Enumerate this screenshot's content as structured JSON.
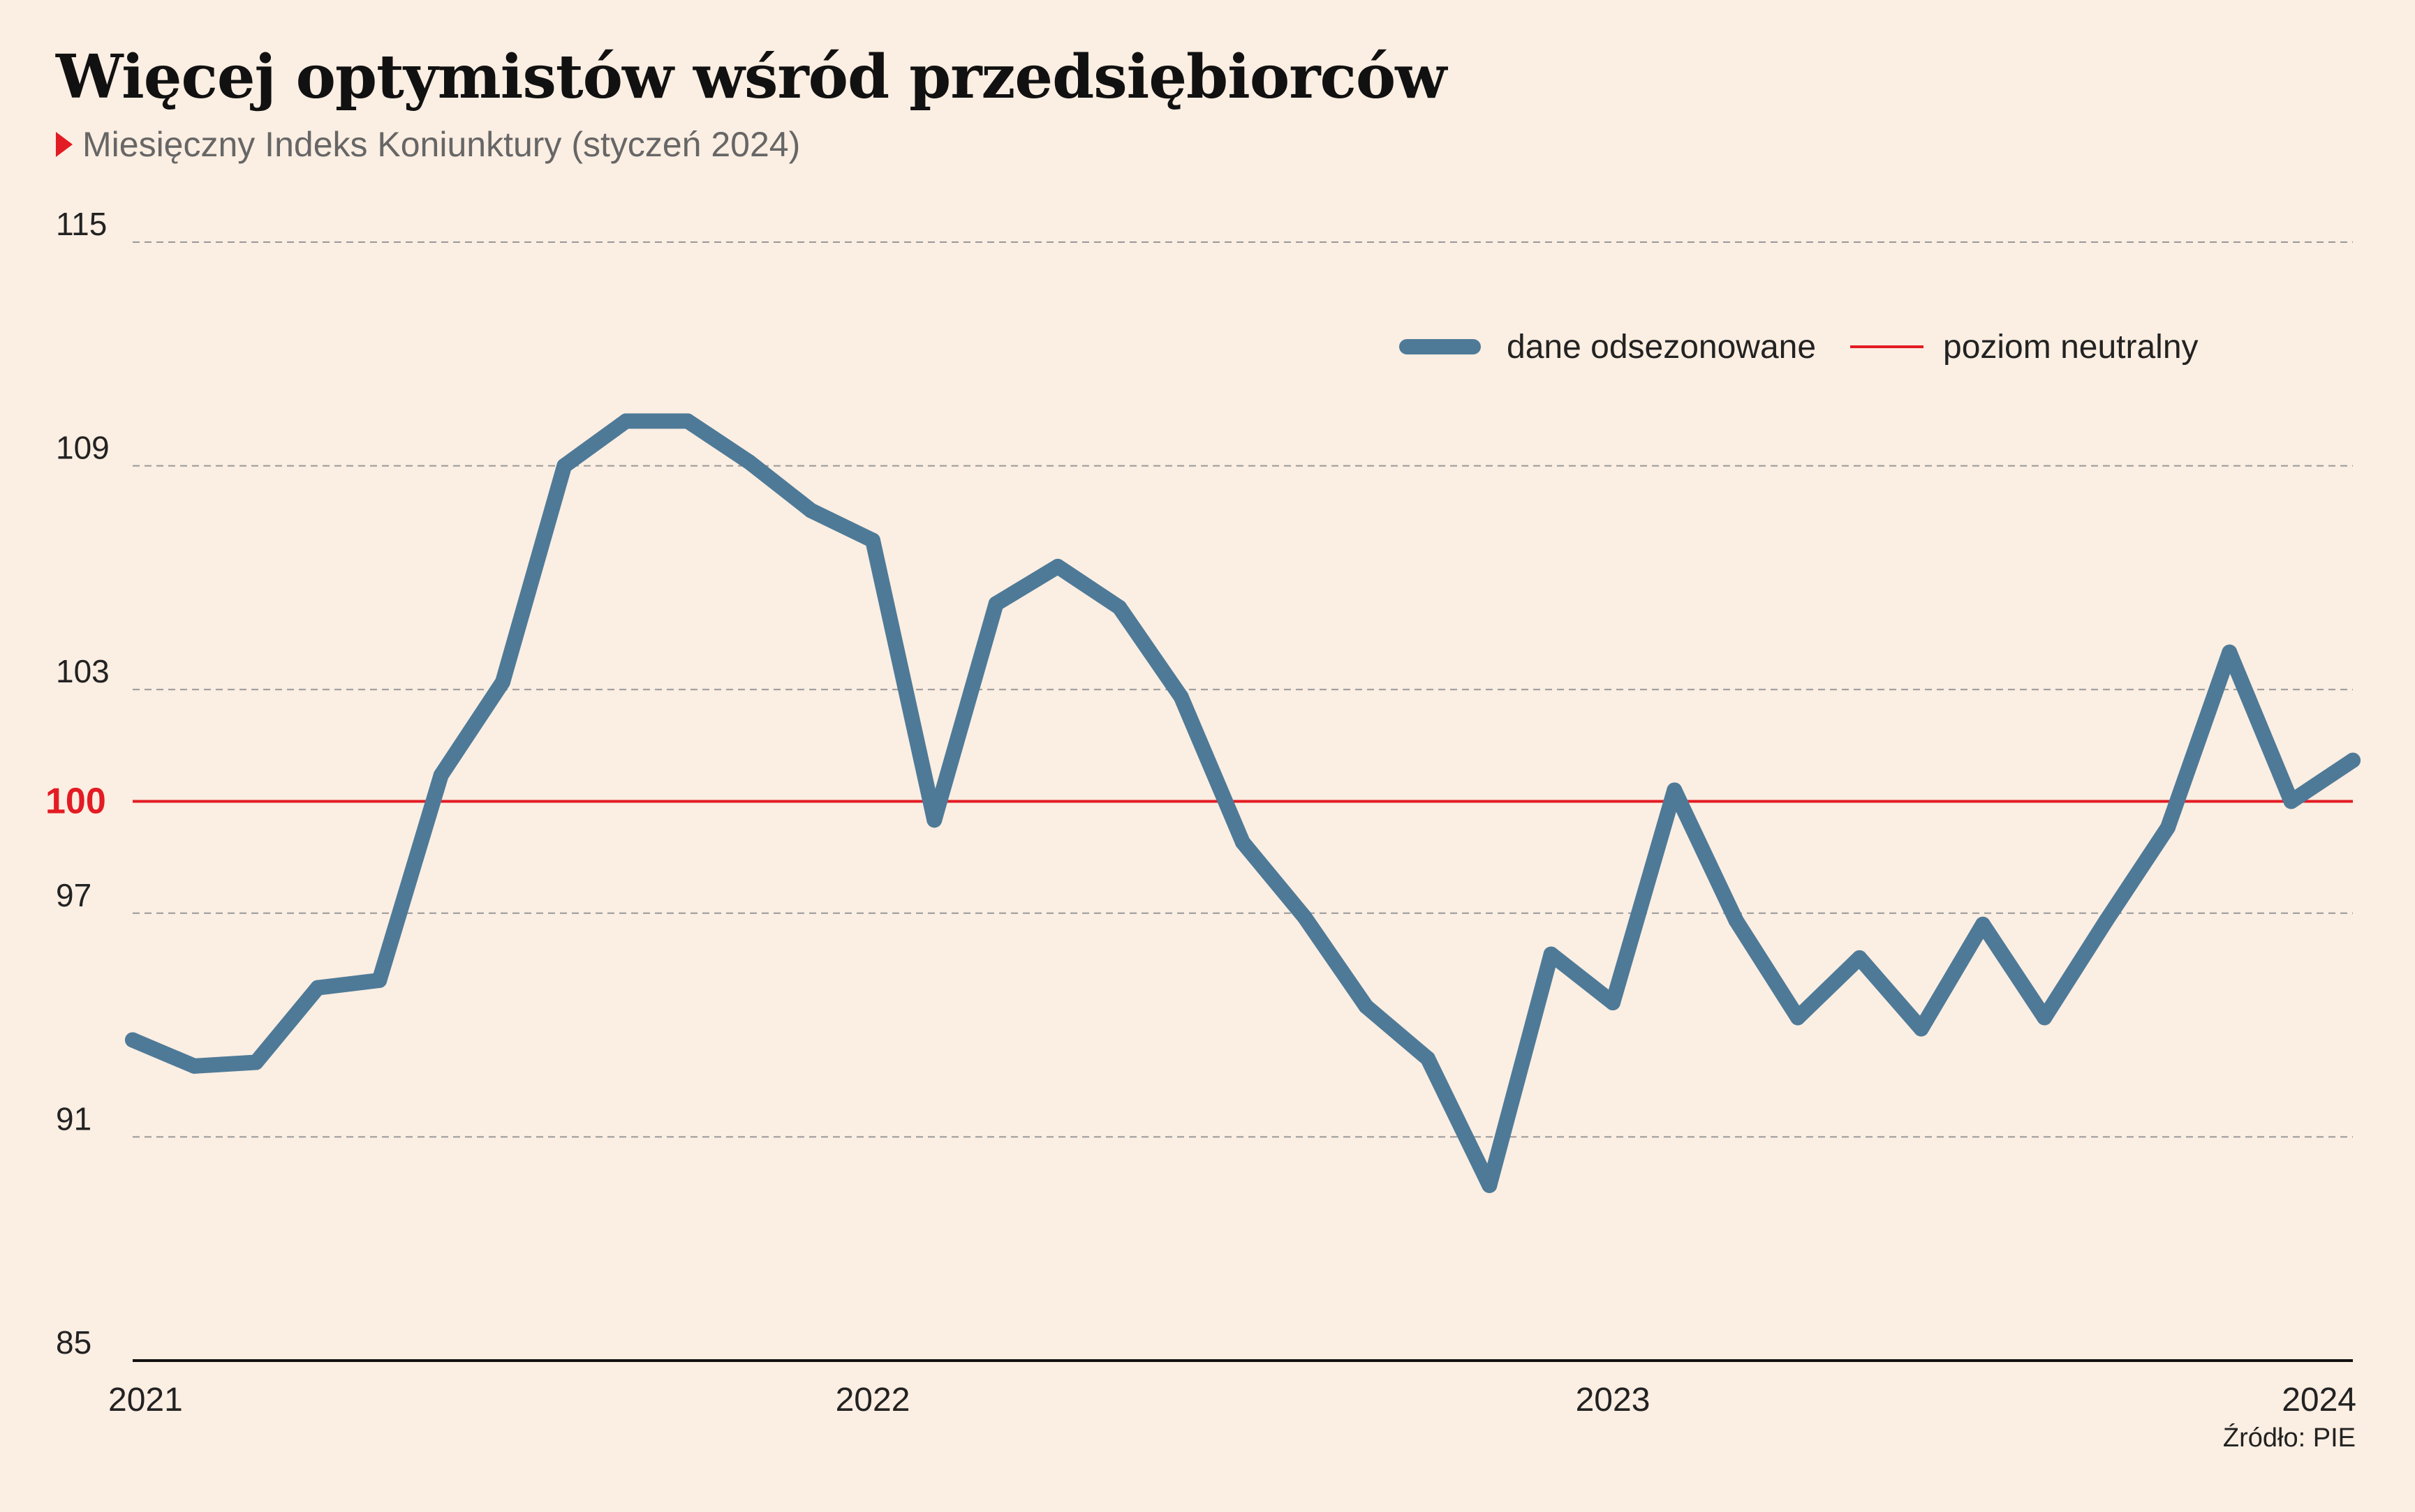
{
  "header": {
    "title": "Więcej optymistów wśród przedsiębiorców",
    "subtitle": "Miesięczny Indeks Koniunktury (styczeń 2024)"
  },
  "footer": {
    "source": "Źródło: PIE"
  },
  "colors": {
    "series": "#4e7a98",
    "neutral": "#e31b23",
    "grid": "#999999",
    "background": "#fbeee2"
  },
  "chart_data": {
    "type": "line",
    "x_start": "2021-01",
    "x_end": "2024-01",
    "x_tick_labels": [
      "2021",
      "2022",
      "2023",
      "2024"
    ],
    "y_ticks": [
      85,
      91,
      97,
      103,
      109,
      115
    ],
    "reference_tick_label": "100",
    "ylim": [
      85,
      115
    ],
    "grid": "dashed horizontal",
    "legend_position": "top-right",
    "legend": [
      "dane odsezonowane",
      "poziom neutralny"
    ],
    "reference_line": {
      "name": "poziom neutralny",
      "value": 100
    },
    "series": [
      {
        "name": "dane odsezonowane",
        "x": [
          "2021-01",
          "2021-02",
          "2021-03",
          "2021-04",
          "2021-05",
          "2021-06",
          "2021-07",
          "2021-08",
          "2021-09",
          "2021-10",
          "2021-11",
          "2021-12",
          "2022-01",
          "2022-02",
          "2022-03",
          "2022-04",
          "2022-05",
          "2022-06",
          "2022-07",
          "2022-08",
          "2022-09",
          "2022-10",
          "2022-11",
          "2022-12",
          "2023-01",
          "2023-02",
          "2023-03",
          "2023-04",
          "2023-05",
          "2023-06",
          "2023-07",
          "2023-08",
          "2023-09",
          "2023-10",
          "2023-11",
          "2023-12",
          "2024-01"
        ],
        "values": [
          93.6,
          92.9,
          93.0,
          95.0,
          95.2,
          100.7,
          103.2,
          109.0,
          110.2,
          110.2,
          109.1,
          107.8,
          107.0,
          99.5,
          105.3,
          106.3,
          105.2,
          102.8,
          98.9,
          96.9,
          94.5,
          93.1,
          89.7,
          95.9,
          94.6,
          100.3,
          96.8,
          94.2,
          95.8,
          93.9,
          96.7,
          94.2,
          96.8,
          99.3,
          104.0,
          100.0,
          101.1
        ]
      }
    ]
  }
}
